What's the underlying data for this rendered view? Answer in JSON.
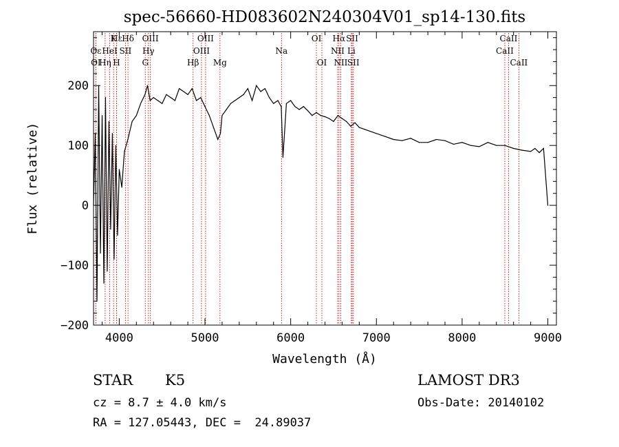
{
  "chart_data": {
    "type": "line",
    "title": "spec-56660-HD083602N240304V01_sp14-130.fits",
    "xlabel": "Wavelength (Å)",
    "ylabel": "Flux (relative)",
    "xlim": [
      3700,
      9100
    ],
    "ylim": [
      -200,
      290
    ],
    "xticks": [
      4000,
      5000,
      6000,
      7000,
      8000,
      9000
    ],
    "yticks": [
      -200,
      -100,
      0,
      100,
      200
    ],
    "series": [
      {
        "name": "flux",
        "x": [
          3700,
          3720,
          3740,
          3760,
          3780,
          3800,
          3820,
          3840,
          3860,
          3880,
          3900,
          3920,
          3940,
          3960,
          3980,
          4000,
          4030,
          4060,
          4100,
          4150,
          4200,
          4250,
          4300,
          4330,
          4360,
          4400,
          4450,
          4500,
          4550,
          4600,
          4650,
          4700,
          4750,
          4800,
          4850,
          4900,
          4950,
          5000,
          5050,
          5100,
          5150,
          5180,
          5200,
          5250,
          5300,
          5350,
          5400,
          5450,
          5500,
          5550,
          5600,
          5650,
          5700,
          5750,
          5800,
          5850,
          5890,
          5910,
          5950,
          6000,
          6050,
          6100,
          6150,
          6200,
          6250,
          6300,
          6350,
          6400,
          6450,
          6500,
          6550,
          6600,
          6650,
          6700,
          6750,
          6800,
          6900,
          7000,
          7100,
          7200,
          7300,
          7400,
          7500,
          7600,
          7700,
          7800,
          7900,
          8000,
          8100,
          8200,
          8300,
          8400,
          8500,
          8600,
          8700,
          8800,
          8850,
          8900,
          8950,
          9000
        ],
        "y": [
          0,
          120,
          -160,
          200,
          -80,
          150,
          -130,
          180,
          -110,
          140,
          -40,
          120,
          -90,
          100,
          -50,
          60,
          30,
          90,
          110,
          140,
          150,
          170,
          185,
          200,
          175,
          180,
          175,
          170,
          185,
          180,
          175,
          195,
          190,
          185,
          195,
          175,
          180,
          165,
          150,
          130,
          110,
          120,
          150,
          160,
          170,
          175,
          180,
          185,
          195,
          175,
          200,
          190,
          195,
          180,
          170,
          175,
          165,
          80,
          170,
          175,
          165,
          160,
          165,
          158,
          150,
          155,
          150,
          148,
          145,
          140,
          150,
          145,
          140,
          132,
          138,
          130,
          125,
          120,
          115,
          110,
          108,
          112,
          105,
          105,
          110,
          108,
          102,
          105,
          100,
          98,
          105,
          100,
          100,
          95,
          92,
          90,
          95,
          88,
          95,
          0
        ]
      }
    ],
    "line_markers": [
      {
        "label": "Hε",
        "x": 3970,
        "row": 1
      },
      {
        "label": "Oε",
        "x": 3727,
        "row": 2
      },
      {
        "label": "OI",
        "x": 3727,
        "row": 3
      },
      {
        "label": "Hδ",
        "x": 4102,
        "row": 1
      },
      {
        "label": "K",
        "x": 3934,
        "row": 1
      },
      {
        "label": "HeI",
        "x": 3889,
        "row": 2
      },
      {
        "label": "SII",
        "x": 4072,
        "row": 2
      },
      {
        "label": "Hη",
        "x": 3835,
        "row": 3
      },
      {
        "label": "H",
        "x": 3969,
        "row": 3
      },
      {
        "label": "OIII",
        "x": 4363,
        "row": 1
      },
      {
        "label": "Hγ",
        "x": 4340,
        "row": 2
      },
      {
        "label": "G",
        "x": 4304,
        "row": 3
      },
      {
        "label": "OIII",
        "x": 5007,
        "row": 1
      },
      {
        "label": "OIII",
        "x": 4959,
        "row": 2
      },
      {
        "label": "Hβ",
        "x": 4861,
        "row": 3
      },
      {
        "label": "Mg",
        "x": 5175,
        "row": 3
      },
      {
        "label": "Na",
        "x": 5893,
        "row": 2
      },
      {
        "label": "OI",
        "x": 6300,
        "row": 1
      },
      {
        "label": "OI",
        "x": 6364,
        "row": 3
      },
      {
        "label": "Hα",
        "x": 6563,
        "row": 1
      },
      {
        "label": "SII",
        "x": 6717,
        "row": 1
      },
      {
        "label": "NII",
        "x": 6548,
        "row": 2
      },
      {
        "label": "Li",
        "x": 6708,
        "row": 2
      },
      {
        "label": "NII",
        "x": 6584,
        "row": 3
      },
      {
        "label": "SII",
        "x": 6731,
        "row": 3
      },
      {
        "label": "CaII",
        "x": 8542,
        "row": 1
      },
      {
        "label": "CaII",
        "x": 8498,
        "row": 2
      },
      {
        "label": "CaII",
        "x": 8662,
        "row": 3
      }
    ]
  },
  "info": {
    "class_label": "STAR",
    "subclass": "K5",
    "survey": "LAMOST DR3",
    "cz": "cz = 8.7 ± 4.0 km/s",
    "obs_date": "Obs-Date: 20140102",
    "radec": "RA = 127.05443, DEC =  24.89037"
  }
}
